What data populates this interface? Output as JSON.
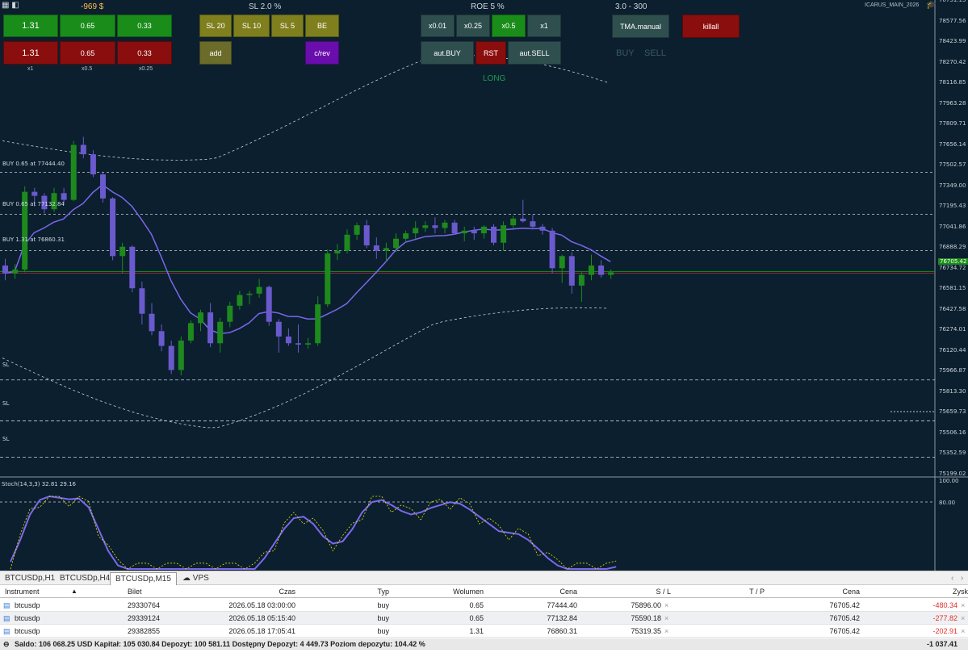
{
  "panel": {
    "pnl": "-969 $",
    "sl_label": "SL 2.0 %",
    "roe_label": "ROE 5 %",
    "range_label": "3.0 - 300",
    "buy_btns": [
      "1.31",
      "0.65",
      "0.33"
    ],
    "sell_btns": [
      "1.31",
      "0.65",
      "0.33"
    ],
    "mult": [
      "x1",
      "x0.5",
      "x0.25"
    ],
    "sl_btns": [
      "SL 20",
      "SL 10",
      "SL 5",
      "BE"
    ],
    "add": "add",
    "crev": "c/rev",
    "lot_btns": [
      "x0.01",
      "x0.25",
      "x0.5",
      "x1"
    ],
    "aut_buy": "aut.BUY",
    "rst": "RST",
    "aut_sell": "aut.SELL",
    "tma": "TMA.manual",
    "killall": "killall",
    "buy_txt": "BUY",
    "sell_txt": "SELL",
    "long_txt": "LONG",
    "account": "ICARUS_MAIN_2026"
  },
  "chart_data": {
    "type": "candlestick",
    "price_axis": [
      "78731.13",
      "78577.56",
      "78423.99",
      "78270.42",
      "78116.85",
      "77963.28",
      "77809.71",
      "77656.14",
      "77502.57",
      "77349.00",
      "77195.43",
      "77041.86",
      "76888.29",
      "76734.72",
      "76581.15",
      "76427.58",
      "76274.01",
      "76120.44",
      "75966.87",
      "75813.30",
      "75659.73",
      "75506.16",
      "75352.59",
      "75199.02"
    ],
    "current_price": "76705.42",
    "stoch_label": "Stoch(14,3,3) 32.81 29.16",
    "stoch_axis": [
      "100.00",
      "80.00"
    ],
    "position_lines": [
      "BUY 0.65 at 77444.40",
      "BUY 0.65 at 77132.84",
      "BUY 1.31 at 76860.31"
    ],
    "sl_lines": [
      "SL",
      "SL",
      "SL"
    ],
    "candles": [
      [
        76750,
        76800,
        76640,
        76690
      ],
      [
        76690,
        76760,
        76650,
        76720
      ],
      [
        76720,
        77340,
        76700,
        77300
      ],
      [
        77300,
        77330,
        77190,
        77270
      ],
      [
        77270,
        77290,
        77140,
        77170
      ],
      [
        77170,
        77330,
        77150,
        77290
      ],
      [
        77290,
        77330,
        77210,
        77240
      ],
      [
        77240,
        77680,
        77230,
        77650
      ],
      [
        77650,
        77710,
        77550,
        77580
      ],
      [
        77580,
        77610,
        77410,
        77430
      ],
      [
        77430,
        77450,
        77220,
        77250
      ],
      [
        77250,
        77260,
        76790,
        76820
      ],
      [
        76820,
        76920,
        76690,
        76890
      ],
      [
        76890,
        76900,
        76550,
        76580
      ],
      [
        76580,
        76630,
        76310,
        76390
      ],
      [
        76390,
        76470,
        76230,
        76260
      ],
      [
        76260,
        76310,
        76110,
        76150
      ],
      [
        76150,
        76190,
        75940,
        75970
      ],
      [
        75970,
        76220,
        75930,
        76190
      ],
      [
        76190,
        76340,
        76170,
        76320
      ],
      [
        76320,
        76420,
        76260,
        76400
      ],
      [
        76400,
        76470,
        76140,
        76170
      ],
      [
        76170,
        76360,
        76100,
        76330
      ],
      [
        76330,
        76480,
        76290,
        76450
      ],
      [
        76450,
        76560,
        76420,
        76530
      ],
      [
        76530,
        76560,
        76460,
        76540
      ],
      [
        76540,
        76650,
        76510,
        76590
      ],
      [
        76590,
        76600,
        76300,
        76330
      ],
      [
        76330,
        76350,
        76100,
        76220
      ],
      [
        76220,
        76280,
        76150,
        76170
      ],
      [
        76170,
        76310,
        76100,
        76160
      ],
      [
        76160,
        76210,
        76130,
        76170
      ],
      [
        76170,
        76520,
        76150,
        76460
      ],
      [
        76460,
        76870,
        76440,
        76840
      ],
      [
        76840,
        76910,
        76790,
        76860
      ],
      [
        76860,
        77020,
        76840,
        76980
      ],
      [
        76980,
        77070,
        76940,
        77050
      ],
      [
        77050,
        77090,
        76880,
        76900
      ],
      [
        76900,
        76960,
        76800,
        76860
      ],
      [
        76860,
        76920,
        76780,
        76880
      ],
      [
        76880,
        76990,
        76850,
        76950
      ],
      [
        76950,
        77010,
        76920,
        76990
      ],
      [
        76990,
        77080,
        76950,
        77030
      ],
      [
        77030,
        77080,
        77000,
        77050
      ],
      [
        77050,
        77110,
        76990,
        77030
      ],
      [
        77030,
        77090,
        76990,
        77070
      ],
      [
        77070,
        77090,
        76980,
        76990
      ],
      [
        76990,
        77040,
        76930,
        77010
      ],
      [
        77010,
        77040,
        76940,
        76990
      ],
      [
        76990,
        77050,
        76950,
        77040
      ],
      [
        77040,
        77060,
        76900,
        76920
      ],
      [
        76920,
        77080,
        76860,
        77050
      ],
      [
        77050,
        77120,
        77030,
        77100
      ],
      [
        77100,
        77240,
        77070,
        77080
      ],
      [
        77080,
        77130,
        77020,
        77040
      ],
      [
        77040,
        77060,
        76980,
        77010
      ],
      [
        77010,
        77030,
        76690,
        76730
      ],
      [
        76730,
        76830,
        76620,
        76820
      ],
      [
        76820,
        76850,
        76540,
        76600
      ],
      [
        76600,
        76700,
        76480,
        76680
      ],
      [
        76680,
        76830,
        76640,
        76750
      ],
      [
        76750,
        76790,
        76660,
        76680
      ],
      [
        76680,
        76720,
        76650,
        76700
      ]
    ],
    "x_labels": []
  },
  "tabs": [
    "BTCUSDp,H1",
    "BTCUSDp,H4",
    "BTCUSDp,M15",
    "VPS"
  ],
  "table": {
    "headers": [
      "Instrument",
      "Bilet",
      "Czas",
      "Typ",
      "Wolumen",
      "Cena",
      "S / L",
      "T / P",
      "Cena",
      "Zysk"
    ],
    "rows": [
      {
        "instrument": "btcusdp",
        "bilet": "29330764",
        "czas": "2026.05.18 03:00:00",
        "typ": "buy",
        "wolumen": "0.65",
        "cena": "77444.40",
        "sl": "75896.00",
        "tp": "",
        "cena2": "76705.42",
        "zysk": "-480.34"
      },
      {
        "instrument": "btcusdp",
        "bilet": "29339124",
        "czas": "2026.05.18 05:15:40",
        "typ": "buy",
        "wolumen": "0.65",
        "cena": "77132.84",
        "sl": "75590.18",
        "tp": "",
        "cena2": "76705.42",
        "zysk": "-277.82"
      },
      {
        "instrument": "btcusdp",
        "bilet": "29382855",
        "czas": "2026.05.18 17:05:41",
        "typ": "buy",
        "wolumen": "1.31",
        "cena": "76860.31",
        "sl": "75319.35",
        "tp": "",
        "cena2": "76705.42",
        "zysk": "-202.91"
      }
    ],
    "summary": "Saldo: 106 068.25 USD  Kapitał: 105 030.84  Depozyt: 100 581.11  Dostępny Depozyt: 4 449.73  Poziom depozytu: 104.42 %",
    "total": "-1 037.41"
  },
  "colors": {
    "bg": "#0b1f2e",
    "bull": "#1e8a1e",
    "bear": "#6a5acd",
    "buy_btn": "#1a8c1a",
    "sell_btn": "#8b0e0e",
    "olive": "#7f7f1e",
    "purple": "#6a0dad",
    "gray_btn": "#2f4f4f"
  }
}
